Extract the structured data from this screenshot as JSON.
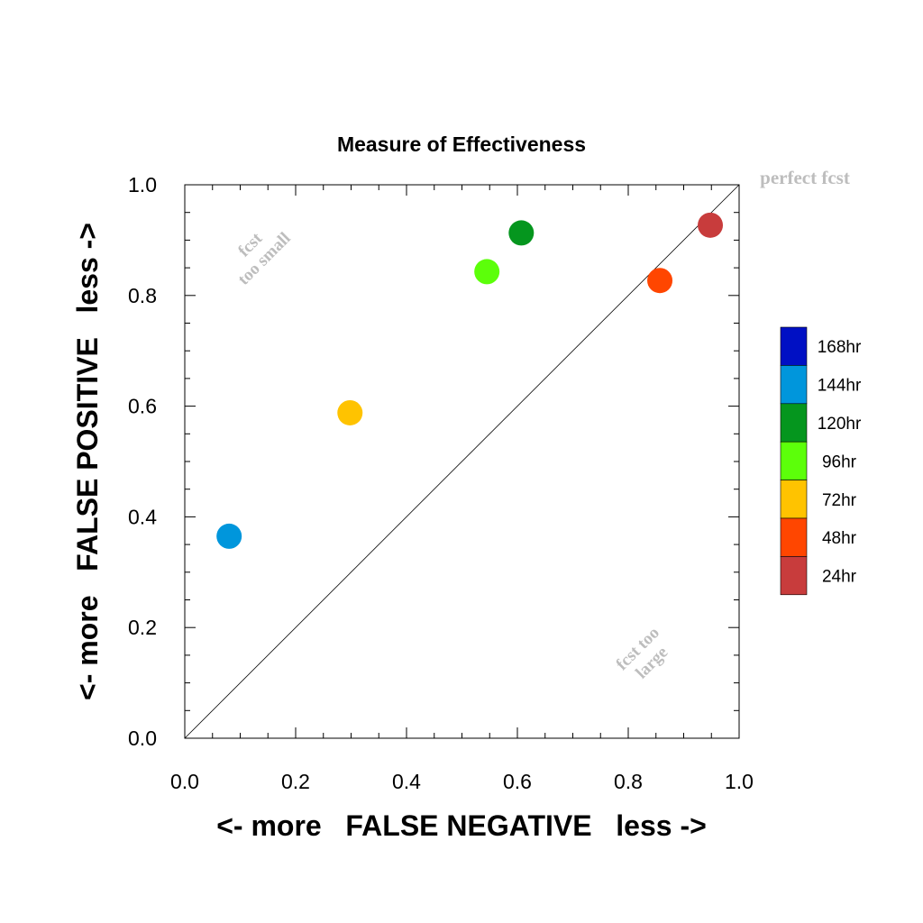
{
  "chart_data": {
    "type": "scatter",
    "title": "Measure of Effectiveness",
    "xlabel": "<- more   FALSE NEGATIVE   less ->",
    "ylabel": "<- more   FALSE POSITIVE   less ->",
    "xlim": [
      0.0,
      1.0
    ],
    "ylim": [
      0.0,
      1.0
    ],
    "x_ticks": [
      "0.0",
      "0.2",
      "0.4",
      "0.6",
      "0.8",
      "1.0"
    ],
    "y_ticks": [
      "0.0",
      "0.2",
      "0.4",
      "0.6",
      "0.8",
      "1.0"
    ],
    "grid": false,
    "diagonal_line": true,
    "legend_position": "right",
    "annotations": {
      "perfect": "perfect fcst",
      "small_line1": "fcst",
      "small_line2": "too small",
      "large_line1": "fcst too",
      "large_line2": "large"
    },
    "legend": [
      {
        "label": "168hr",
        "color": "#0010c4"
      },
      {
        "label": "144hr",
        "color": "#0096dc"
      },
      {
        "label": "120hr",
        "color": "#05961e"
      },
      {
        "label": "96hr",
        "color": "#5cff0a"
      },
      {
        "label": "72hr",
        "color": "#ffc300"
      },
      {
        "label": "48hr",
        "color": "#ff4600"
      },
      {
        "label": "24hr",
        "color": "#c83c3c"
      }
    ],
    "points": [
      {
        "label": "144hr",
        "x": 0.08,
        "y": 0.365,
        "color": "#0096dc"
      },
      {
        "label": "72hr",
        "x": 0.298,
        "y": 0.588,
        "color": "#ffc300"
      },
      {
        "label": "96hr",
        "x": 0.545,
        "y": 0.843,
        "color": "#5cff0a"
      },
      {
        "label": "120hr",
        "x": 0.607,
        "y": 0.913,
        "color": "#05961e"
      },
      {
        "label": "48hr",
        "x": 0.857,
        "y": 0.827,
        "color": "#ff4600"
      },
      {
        "label": "24hr",
        "x": 0.948,
        "y": 0.927,
        "color": "#c83c3c"
      }
    ]
  }
}
